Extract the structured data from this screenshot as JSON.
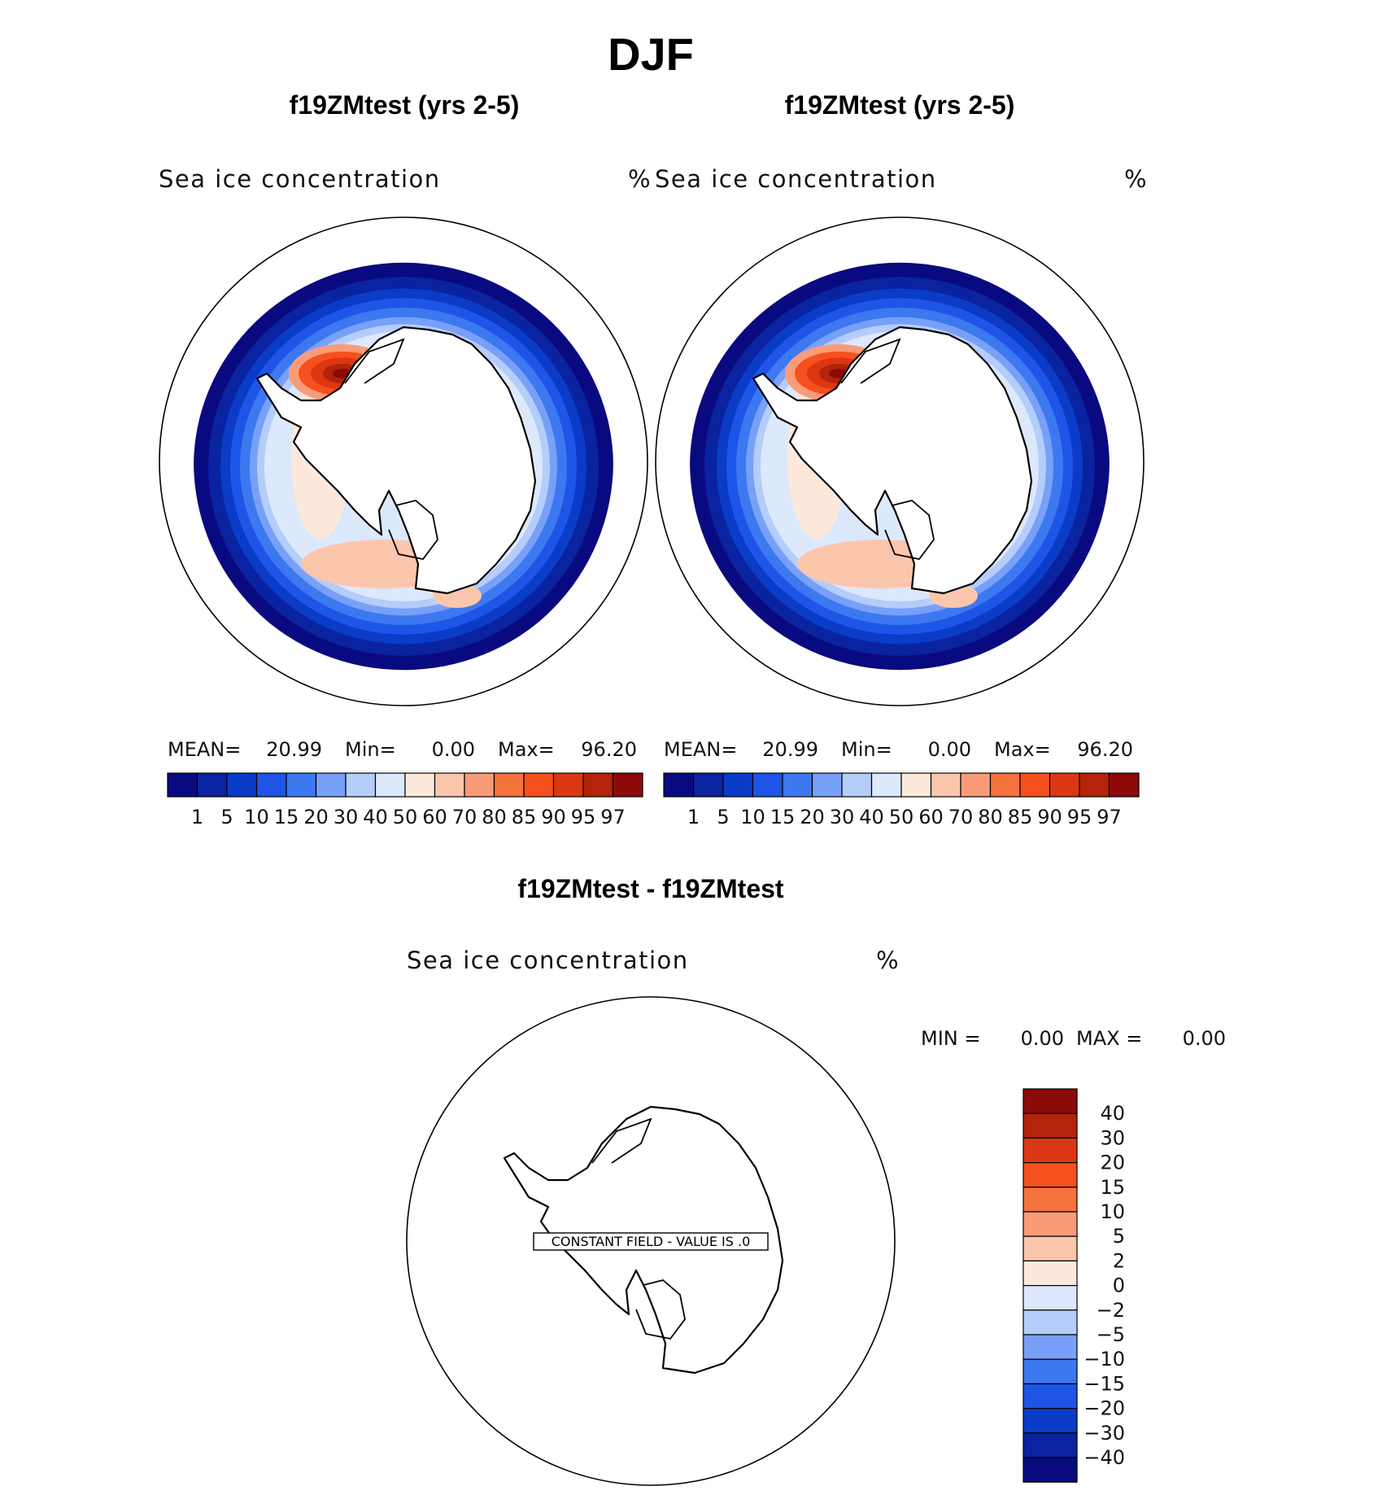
{
  "figure_title": "DJF",
  "colors": {
    "seq": [
      "#0a0a80",
      "#0a23a0",
      "#0a3cc8",
      "#1e55e6",
      "#3c78f0",
      "#78a0f8",
      "#b4cdfa",
      "#dce9fc",
      "#fde9dc",
      "#fcc6ad",
      "#fa9b78",
      "#f5733c",
      "#f5501e",
      "#dc3714",
      "#b4230a",
      "#8c0a0a"
    ],
    "diff": [
      "#8c0a0a",
      "#b4230a",
      "#dc3714",
      "#f5501e",
      "#f5733c",
      "#fa9b78",
      "#fcc6ad",
      "#fde9dc",
      "#dce9fc",
      "#b4cdfa",
      "#78a0f8",
      "#3c78f0",
      "#1e55e6",
      "#0a3cc8",
      "#0a23a0",
      "#0a0a80"
    ]
  },
  "chart_data": [
    {
      "type": "heatmap",
      "title": "f19ZMtest (yrs 2-5)",
      "field_label": "Sea ice concentration",
      "units": "%",
      "stats": {
        "mean_label": "MEAN=",
        "mean": "20.99",
        "min_label": "Min=",
        "min": "0.00",
        "max_label": "Max=",
        "max": "96.20"
      },
      "levels": [
        "1",
        "5",
        "10",
        "15",
        "20",
        "30",
        "40",
        "50",
        "60",
        "70",
        "80",
        "85",
        "90",
        "95",
        "97"
      ],
      "projection": "south-polar stereographic"
    },
    {
      "type": "heatmap",
      "title": "f19ZMtest (yrs 2-5)",
      "field_label": "Sea ice concentration",
      "units": "%",
      "stats": {
        "mean_label": "MEAN=",
        "mean": "20.99",
        "min_label": "Min=",
        "min": "0.00",
        "max_label": "Max=",
        "max": "96.20"
      },
      "levels": [
        "1",
        "5",
        "10",
        "15",
        "20",
        "30",
        "40",
        "50",
        "60",
        "70",
        "80",
        "85",
        "90",
        "95",
        "97"
      ],
      "projection": "south-polar stereographic"
    },
    {
      "type": "heatmap",
      "title": "f19ZMtest - f19ZMtest",
      "field_label": "Sea ice concentration",
      "units": "%",
      "stats": {
        "min_label": "MIN =",
        "min": "0.00",
        "max_label": "MAX =",
        "max": "0.00"
      },
      "constant_field_label": "CONSTANT FIELD - VALUE IS .0",
      "levels": [
        "40",
        "30",
        "20",
        "15",
        "10",
        "5",
        "2",
        "0",
        "−2",
        "−5",
        "−10",
        "−15",
        "−20",
        "−30",
        "−40"
      ],
      "projection": "south-polar stereographic"
    }
  ]
}
